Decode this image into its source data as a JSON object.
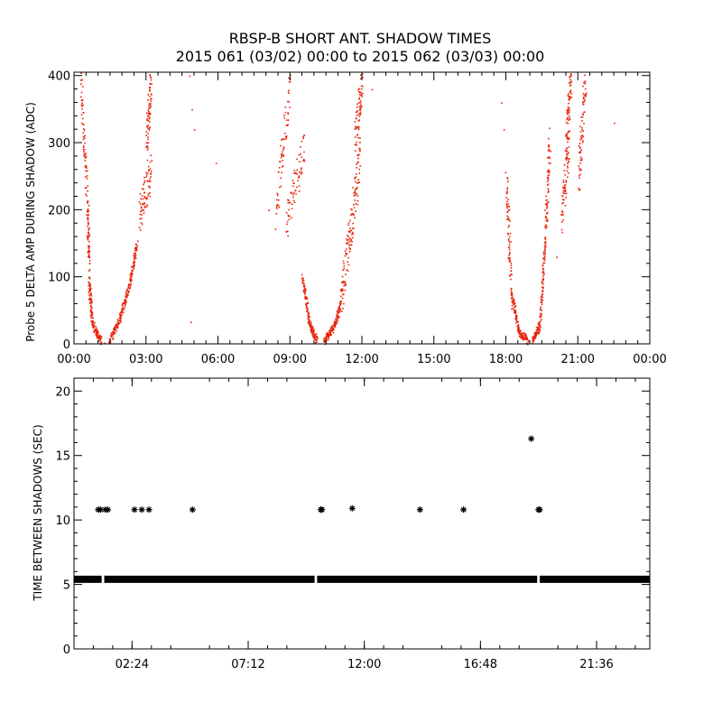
{
  "colors": {
    "shadow_amp": "#e8250c",
    "shadow_dt": "#000000",
    "axis": "#000000"
  },
  "chart_data": [
    {
      "type": "scatter",
      "title": "RBSP-B SHORT ANT. SHADOW TIMES",
      "subtitle": "2015 061 (03/02) 00:00 to 2015 062 (03/03) 00:00",
      "ylabel": "Probe 5 DELTA AMP DURING SHADOW (ADC)",
      "xlim": [
        0,
        24
      ],
      "ylim": [
        0,
        405
      ],
      "xtick_labels": [
        "00:00",
        "03:00",
        "06:00",
        "09:00",
        "12:00",
        "15:00",
        "18:00",
        "21:00",
        "00:00"
      ],
      "ytick_labels": [
        "0",
        "100",
        "200",
        "300",
        "400"
      ],
      "series": [
        {
          "segments": [
            [
              0.25,
              400,
              0.55,
              200
            ],
            [
              0.55,
              200,
              0.62,
              90
            ],
            [
              0.62,
              90,
              0.75,
              30
            ],
            [
              0.75,
              30,
              1.1,
              5
            ],
            [
              1.45,
              5,
              1.9,
              40
            ],
            [
              1.9,
              40,
              2.3,
              90
            ],
            [
              2.3,
              90,
              2.6,
              150
            ],
            [
              2.7,
              190,
              3.2,
              260
            ],
            [
              3.0,
              300,
              3.2,
              400
            ],
            [
              8.4,
              200,
              9.0,
              400
            ],
            [
              8.8,
              180,
              9.6,
              300
            ],
            [
              9.5,
              100,
              9.8,
              30
            ],
            [
              9.8,
              30,
              10.1,
              5
            ],
            [
              10.4,
              5,
              10.8,
              25
            ],
            [
              10.8,
              25,
              11.1,
              60
            ],
            [
              11.1,
              60,
              11.5,
              170
            ],
            [
              11.5,
              170,
              11.9,
              280
            ],
            [
              11.7,
              300,
              12.0,
              405
            ],
            [
              18.0,
              240,
              18.2,
              80
            ],
            [
              18.2,
              80,
              18.5,
              20
            ],
            [
              18.5,
              20,
              18.9,
              5
            ],
            [
              19.1,
              5,
              19.4,
              30
            ],
            [
              19.4,
              30,
              19.6,
              150
            ],
            [
              19.6,
              150,
              19.8,
              300
            ],
            [
              20.3,
              190,
              20.6,
              300
            ],
            [
              20.5,
              300,
              20.7,
              400
            ],
            [
              21.0,
              250,
              21.3,
              400
            ]
          ],
          "points": [
            [
              0.3,
              330
            ],
            [
              0.45,
              250
            ],
            [
              1.25,
              2
            ],
            [
              4.8,
              400
            ],
            [
              4.9,
              350
            ],
            [
              5.0,
              320
            ],
            [
              4.85,
              33
            ],
            [
              5.9,
              270
            ],
            [
              8.1,
              200
            ],
            [
              12.4,
              380
            ],
            [
              17.8,
              360
            ],
            [
              17.9,
              320
            ],
            [
              20.1,
              130
            ],
            [
              22.5,
              330
            ]
          ]
        }
      ]
    },
    {
      "type": "scatter",
      "ylabel": "TIME BETWEEN SHADOWS (SEC)",
      "xlim": [
        0,
        23.8
      ],
      "ylim": [
        0,
        21
      ],
      "xtick_labels": [
        "02:24",
        "07:12",
        "12:00",
        "16:48",
        "21:36"
      ],
      "ytick_labels": [
        "0",
        "5",
        "10",
        "15",
        "20"
      ],
      "series": [
        {
          "baseline": 5.4,
          "baseline_range": [
            0,
            23.8
          ],
          "baseline_gaps": [
            1.2,
            10.0,
            19.2
          ],
          "points": [
            [
              1.0,
              10.8
            ],
            [
              1.1,
              10.8
            ],
            [
              1.3,
              10.8
            ],
            [
              1.4,
              10.8
            ],
            [
              2.5,
              10.8
            ],
            [
              2.8,
              10.8
            ],
            [
              3.1,
              10.8
            ],
            [
              4.9,
              10.8
            ],
            [
              10.2,
              10.8
            ],
            [
              10.25,
              10.8
            ],
            [
              11.5,
              10.9
            ],
            [
              14.3,
              10.8
            ],
            [
              16.1,
              10.8
            ],
            [
              18.9,
              16.3
            ],
            [
              19.2,
              10.8
            ],
            [
              19.25,
              10.8
            ]
          ]
        }
      ]
    }
  ]
}
